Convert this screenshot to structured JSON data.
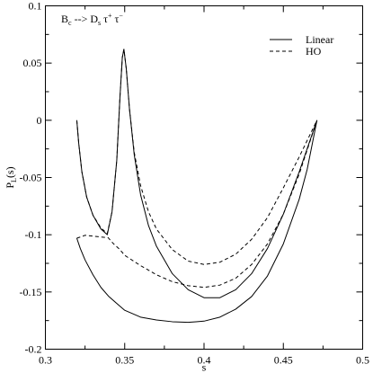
{
  "chart_data": {
    "type": "line",
    "xlabel": "s",
    "ylabel_main": "P",
    "ylabel_sub": "L",
    "ylabel_tail": "(s)",
    "xlim": [
      0.3,
      0.5
    ],
    "ylim": [
      -0.2,
      0.1
    ],
    "xticks": [
      0.3,
      0.35,
      0.4,
      0.45,
      0.5
    ],
    "xtick_labels": [
      "0.3",
      "0.35",
      "0.4",
      "0.45",
      "0.5"
    ],
    "yticks": [
      0.1,
      0.05,
      0,
      -0.05,
      -0.1,
      -0.15,
      -0.2
    ],
    "ytick_labels": [
      "0.1",
      "0.05",
      "0",
      "-0.05",
      "-0.1",
      "-0.15",
      "-0.2"
    ],
    "grid": false,
    "legend_position": "top-right",
    "annotation": {
      "parts": [
        "B",
        "c",
        " --> D",
        "s",
        " τ",
        "+",
        " τ",
        "−"
      ]
    },
    "series": [
      {
        "name": "Linear",
        "style": "solid",
        "x": [
          0.3198,
          0.322,
          0.325,
          0.33,
          0.335,
          0.34,
          0.345,
          0.35,
          0.36,
          0.37,
          0.38,
          0.39,
          0.395,
          0.4,
          0.41,
          0.42,
          0.43,
          0.44,
          0.45,
          0.46,
          0.465,
          0.4712
        ],
        "y": [
          -0.103,
          -0.112,
          -0.122,
          -0.135,
          -0.146,
          -0.154,
          -0.16,
          -0.166,
          -0.172,
          -0.1745,
          -0.176,
          -0.1765,
          -0.176,
          -0.1755,
          -0.172,
          -0.165,
          -0.154,
          -0.136,
          -0.108,
          -0.069,
          -0.043,
          0.0
        ]
      },
      {
        "name": "Linear",
        "style": "solid",
        "x": [
          0.3198,
          0.321,
          0.323,
          0.326,
          0.33,
          0.335,
          0.339,
          0.342,
          0.345,
          0.347,
          0.3485,
          0.3495,
          0.351,
          0.353,
          0.356,
          0.36,
          0.365,
          0.37,
          0.38,
          0.39,
          0.4,
          0.41,
          0.42,
          0.43,
          0.44,
          0.45,
          0.46,
          0.4712
        ],
        "y": [
          0.0,
          -0.02,
          -0.045,
          -0.067,
          -0.083,
          -0.095,
          -0.1,
          -0.08,
          -0.035,
          0.02,
          0.055,
          0.062,
          0.045,
          0.01,
          -0.03,
          -0.065,
          -0.092,
          -0.11,
          -0.134,
          -0.148,
          -0.155,
          -0.155,
          -0.148,
          -0.134,
          -0.112,
          -0.082,
          -0.045,
          0.0
        ]
      },
      {
        "name": "HO",
        "style": "dashed",
        "x": [
          0.3198,
          0.322,
          0.325,
          0.33,
          0.335,
          0.3395,
          0.343,
          0.347,
          0.35,
          0.36,
          0.37,
          0.38,
          0.39,
          0.4,
          0.41,
          0.42,
          0.43,
          0.44,
          0.45,
          0.46,
          0.4712
        ],
        "y": [
          -0.103,
          -0.102,
          -0.1005,
          -0.1012,
          -0.102,
          -0.1025,
          -0.108,
          -0.113,
          -0.118,
          -0.127,
          -0.135,
          -0.141,
          -0.1445,
          -0.146,
          -0.144,
          -0.138,
          -0.126,
          -0.108,
          -0.082,
          -0.047,
          0.0
        ]
      },
      {
        "name": "HO",
        "style": "dashed",
        "x": [
          0.3198,
          0.321,
          0.323,
          0.326,
          0.33,
          0.335,
          0.339,
          0.342,
          0.345,
          0.347,
          0.3485,
          0.3495,
          0.351,
          0.353,
          0.356,
          0.36,
          0.365,
          0.37,
          0.38,
          0.39,
          0.4,
          0.41,
          0.42,
          0.43,
          0.44,
          0.45,
          0.46,
          0.4712
        ],
        "y": [
          0.0,
          -0.02,
          -0.045,
          -0.067,
          -0.083,
          -0.094,
          -0.099,
          -0.08,
          -0.035,
          0.02,
          0.055,
          0.062,
          0.045,
          0.01,
          -0.028,
          -0.057,
          -0.08,
          -0.095,
          -0.113,
          -0.123,
          -0.126,
          -0.124,
          -0.117,
          -0.104,
          -0.085,
          -0.059,
          -0.032,
          0.0
        ]
      }
    ],
    "legend": [
      {
        "label": "Linear",
        "style": "solid"
      },
      {
        "label": "HO",
        "style": "dashed"
      }
    ]
  }
}
